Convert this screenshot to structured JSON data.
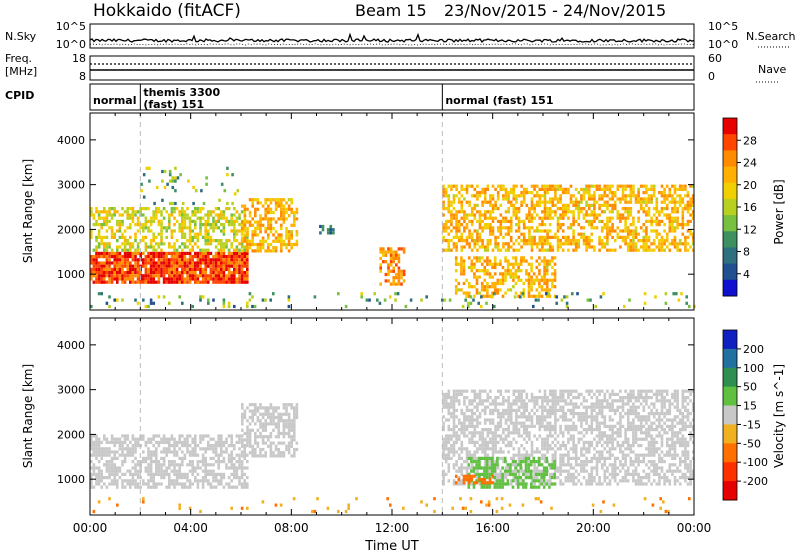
{
  "header": {
    "station": "Hokkaido (fitACF)",
    "beam": "Beam 15",
    "date_range": "23/Nov/2015 - 24/Nov/2015"
  },
  "strips": {
    "nsky": {
      "label": "N.Sky",
      "ticks": [
        "10^5",
        "10^0"
      ],
      "right_label": "N.Search",
      "right_ticks": [
        "10^5",
        "10^0"
      ]
    },
    "freq": {
      "label_lines": [
        "Freq.",
        "[MHz]"
      ],
      "ticks": [
        "18",
        "8"
      ],
      "right_label": "Nave",
      "right_ticks": [
        "60",
        "0"
      ]
    },
    "cpid": {
      "label": "CPID",
      "segments": [
        {
          "start_h": 0,
          "end_h": 2,
          "lines": [
            "normal"
          ]
        },
        {
          "start_h": 2,
          "end_h": 14,
          "lines": [
            "themis 3300",
            "(fast) 151"
          ]
        },
        {
          "start_h": 14,
          "end_h": 24,
          "lines": [
            "normal (fast) 151"
          ]
        }
      ]
    }
  },
  "chart_data": [
    {
      "type": "heatmap",
      "panel": "power",
      "title": "",
      "xlabel": "Time UT",
      "ylabel": "Slant Range [km]",
      "xlim": [
        0,
        24
      ],
      "ylim": [
        200,
        4600
      ],
      "x_ticks": [
        "00:00",
        "04:00",
        "08:00",
        "12:00",
        "16:00",
        "20:00",
        "00:00"
      ],
      "y_ticks": [
        1000,
        2000,
        3000,
        4000
      ],
      "colorbar": {
        "label": "Power [dB]",
        "ticks": [
          "28",
          "24",
          "20",
          "16",
          "12",
          "8",
          "4"
        ],
        "colors_top_to_bottom": [
          "#e60000",
          "#ff4500",
          "#ff8c00",
          "#ffb000",
          "#f0d000",
          "#b8d020",
          "#78c040",
          "#3f9060",
          "#2f7080",
          "#205090",
          "#1010d0"
        ]
      },
      "features": [
        {
          "desc": "near-range band",
          "t": [
            0,
            6.3
          ],
          "range": [
            800,
            1500
          ],
          "level_db": 28
        },
        {
          "desc": "rising band",
          "t": [
            0,
            6.3
          ],
          "range": [
            1500,
            2500
          ],
          "level_db": 18
        },
        {
          "desc": "second band",
          "t": [
            6,
            8.2
          ],
          "range": [
            1500,
            2700
          ],
          "level_db": 22
        },
        {
          "desc": "patch",
          "t": [
            9,
            9.7
          ],
          "range": [
            1900,
            2100
          ],
          "level_db": 10
        },
        {
          "desc": "11 UT tongue",
          "t": [
            11.5,
            12.5
          ],
          "range": [
            800,
            1600
          ],
          "level_db": 24
        },
        {
          "desc": "evening arc",
          "t": [
            14,
            24
          ],
          "range": [
            1500,
            3000
          ],
          "level_db": 22
        },
        {
          "desc": "lower bands",
          "t": [
            14.5,
            18.5
          ],
          "range": [
            500,
            1400
          ],
          "level_db": 22
        }
      ]
    },
    {
      "type": "heatmap",
      "panel": "velocity",
      "title": "",
      "xlabel": "Time UT",
      "ylabel": "Slant Range [km]",
      "xlim": [
        0,
        24
      ],
      "ylim": [
        200,
        4600
      ],
      "x_ticks": [
        "00:00",
        "04:00",
        "08:00",
        "12:00",
        "16:00",
        "20:00",
        "00:00"
      ],
      "y_ticks": [
        1000,
        2000,
        3000,
        4000
      ],
      "colorbar": {
        "label": "Velocity [m s^-1]",
        "ticks": [
          "200",
          "100",
          "50",
          "15",
          "-15",
          "-50",
          "-100",
          "-200"
        ],
        "colors_top_to_bottom": [
          "#1020c0",
          "#2070a0",
          "#2f8f50",
          "#60c040",
          "#c8c8c8",
          "#f0b020",
          "#ff7000",
          "#ff3000",
          "#e60000"
        ]
      },
      "features": [
        {
          "desc": "ground scatter band",
          "t": [
            0,
            6.3
          ],
          "range": [
            800,
            2000
          ],
          "velocity": 0
        },
        {
          "desc": "second band",
          "t": [
            6,
            8.2
          ],
          "range": [
            1500,
            2700
          ],
          "velocity": 0
        },
        {
          "desc": "evening arc",
          "t": [
            14,
            24
          ],
          "range": [
            900,
            3000
          ],
          "velocity": 0
        },
        {
          "desc": "positive velocity patch",
          "t": [
            15,
            18.5
          ],
          "range": [
            800,
            1500
          ],
          "velocity": 40
        },
        {
          "desc": "negative velocity patch",
          "t": [
            14.5,
            16
          ],
          "range": [
            900,
            1100
          ],
          "velocity": -80
        }
      ]
    }
  ]
}
